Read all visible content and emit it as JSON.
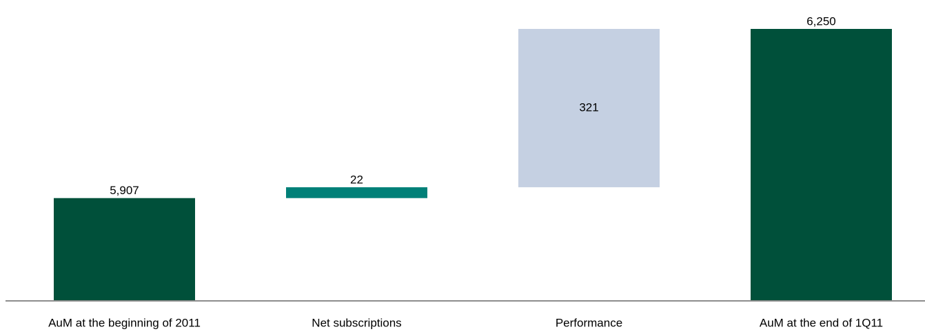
{
  "chart_data": {
    "type": "waterfall",
    "categories": [
      "AuM at the beginning of 2011",
      "Net subscriptions",
      "Performance",
      "AuM at the end of 1Q11"
    ],
    "values": [
      5907,
      22,
      321,
      6250
    ],
    "value_labels": [
      "5,907",
      "22",
      "321",
      "6,250"
    ],
    "totals": [
      true,
      false,
      false,
      true
    ],
    "colors": [
      "#00503a",
      "#008078",
      "#c5d0e2",
      "#00503a"
    ],
    "ylim": [
      5700,
      6250
    ]
  }
}
